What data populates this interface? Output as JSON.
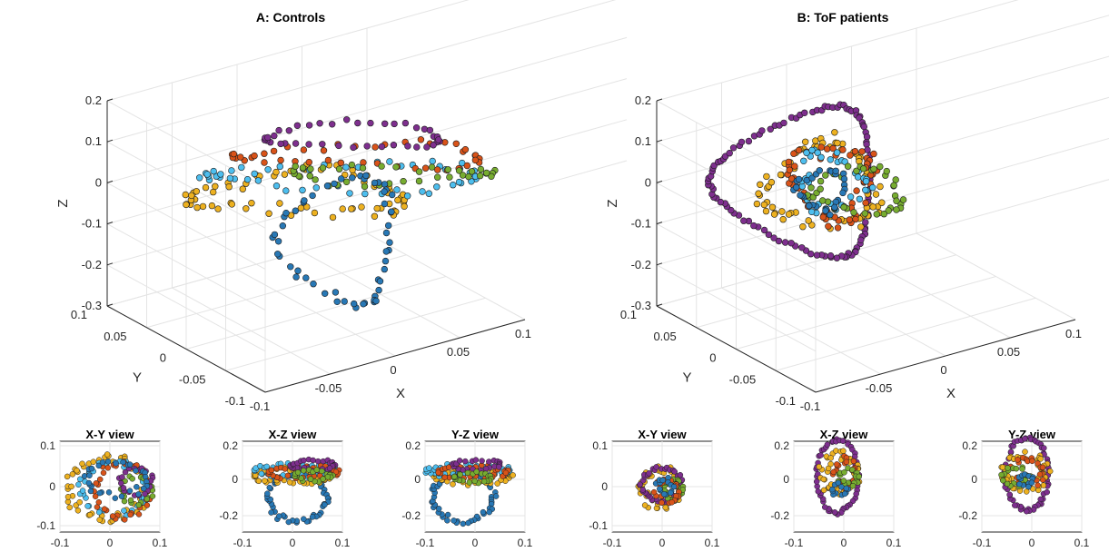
{
  "chart_data": [
    {
      "type": "scatter",
      "title": "A: Controls",
      "xlabel": "X",
      "ylabel": "Y",
      "zlabel": "Z",
      "xlim": [
        -0.1,
        0.1
      ],
      "ylim": [
        -0.1,
        0.1
      ],
      "zlim": [
        -0.3,
        0.2
      ],
      "x_ticks": [
        "-0.1",
        "-0.05",
        "0",
        "0.05",
        "0.1"
      ],
      "y_ticks": [
        "-0.1",
        "-0.05",
        "0",
        "0.05",
        "0.1"
      ],
      "z_ticks": [
        "-0.3",
        "-0.2",
        "-0.1",
        "0",
        "0.1",
        "0.2"
      ],
      "grid": true,
      "series_colors": [
        "#2878b5",
        "#d95319",
        "#edb120",
        "#7e2f8e",
        "#77ac30",
        "#4dbeee"
      ]
    },
    {
      "type": "scatter",
      "title": "B: ToF patients",
      "xlabel": "X",
      "ylabel": "Y",
      "zlabel": "Z",
      "xlim": [
        -0.1,
        0.1
      ],
      "ylim": [
        -0.1,
        0.1
      ],
      "zlim": [
        -0.3,
        0.2
      ],
      "x_ticks": [
        "-0.1",
        "-0.05",
        "0",
        "0.05",
        "0.1"
      ],
      "y_ticks": [
        "-0.1",
        "-0.05",
        "0",
        "0.05",
        "0.1"
      ],
      "z_ticks": [
        "-0.3",
        "-0.2",
        "-0.1",
        "0",
        "0.1",
        "0.2"
      ],
      "grid": true,
      "series_colors": [
        "#2878b5",
        "#d95319",
        "#edb120",
        "#7e2f8e",
        "#77ac30",
        "#4dbeee"
      ]
    },
    {
      "type": "scatter",
      "title": "X-Y view",
      "x_ticks": [
        "-0.1",
        "0",
        "0.1"
      ],
      "y_ticks": [
        "0.1",
        "0",
        "-0.1"
      ],
      "xlim": [
        -0.1,
        0.1
      ],
      "ylim": [
        -0.12,
        0.1
      ]
    },
    {
      "type": "scatter",
      "title": "X-Z view",
      "x_ticks": [
        "-0.1",
        "0",
        "0.1"
      ],
      "y_ticks": [
        "0.2",
        "0",
        "-0.2"
      ],
      "xlim": [
        -0.1,
        0.1
      ],
      "ylim": [
        -0.3,
        0.2
      ]
    },
    {
      "type": "scatter",
      "title": "Y-Z view",
      "x_ticks": [
        "-0.1",
        "0",
        "0.1"
      ],
      "y_ticks": [
        "0.2",
        "0",
        "-0.2"
      ],
      "xlim": [
        -0.1,
        0.1
      ],
      "ylim": [
        -0.3,
        0.2
      ]
    },
    {
      "type": "scatter",
      "title": "X-Y view",
      "x_ticks": [
        "-0.1",
        "0",
        "0.1"
      ],
      "y_ticks": [
        "0.1",
        "0",
        "-0.1"
      ],
      "xlim": [
        -0.1,
        0.1
      ],
      "ylim": [
        -0.12,
        0.1
      ]
    },
    {
      "type": "scatter",
      "title": "X-Z view",
      "x_ticks": [
        "-0.1",
        "0",
        "0.1"
      ],
      "y_ticks": [
        "0.2",
        "0",
        "-0.2"
      ],
      "xlim": [
        -0.1,
        0.1
      ],
      "ylim": [
        -0.3,
        0.2
      ]
    },
    {
      "type": "scatter",
      "title": "Y-Z view",
      "x_ticks": [
        "-0.1",
        "0",
        "0.1"
      ],
      "y_ticks": [
        "0.2",
        "0",
        "-0.2"
      ],
      "xlim": [
        -0.1,
        0.1
      ],
      "ylim": [
        -0.3,
        0.2
      ]
    }
  ]
}
